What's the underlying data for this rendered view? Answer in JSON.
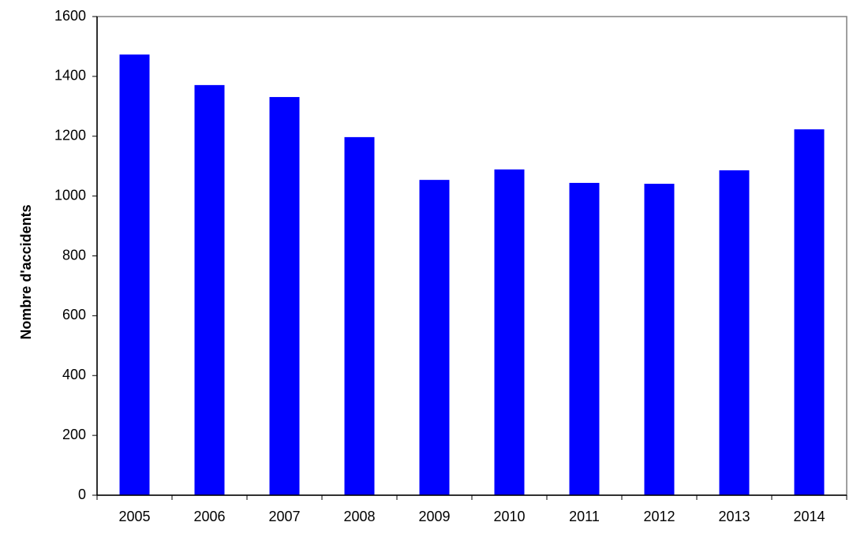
{
  "chart_data": {
    "type": "bar",
    "y_label": "Nombre d'accidents",
    "categories": [
      "2005",
      "2006",
      "2007",
      "2008",
      "2009",
      "2010",
      "2011",
      "2012",
      "2013",
      "2014"
    ],
    "values": [
      1473,
      1371,
      1331,
      1197,
      1054,
      1089,
      1044,
      1041,
      1086,
      1223
    ],
    "color": "#0000ff",
    "ylim": [
      0,
      1600
    ],
    "yticks": [
      0,
      200,
      400,
      600,
      800,
      1000,
      1200,
      1400,
      1600
    ],
    "grid": false
  }
}
